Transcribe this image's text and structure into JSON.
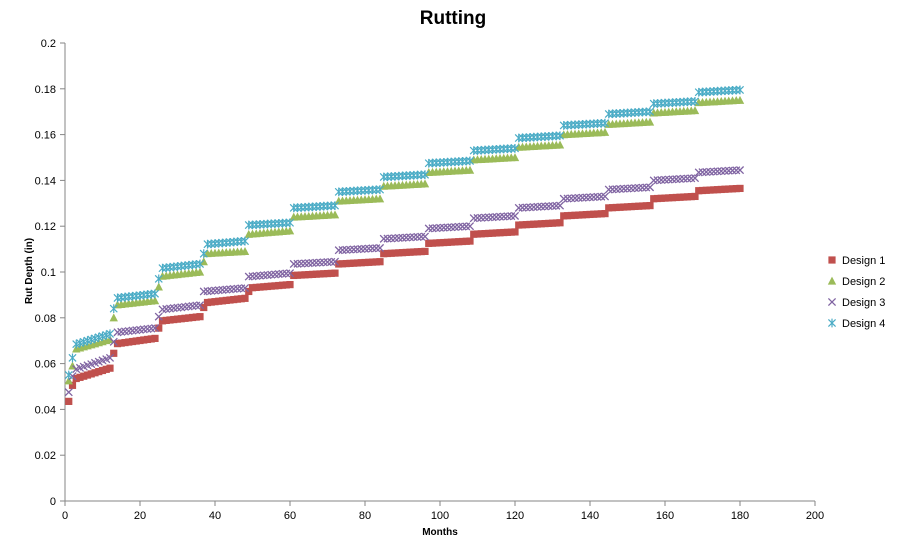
{
  "chart_data": {
    "type": "scatter",
    "title": "Rutting",
    "xlabel": "Months",
    "ylabel": "Rut Depth (in)",
    "xlim": [
      0,
      200
    ],
    "ylim": [
      0,
      0.2
    ],
    "x_ticks": [
      0,
      20,
      40,
      60,
      80,
      100,
      120,
      140,
      160,
      180,
      200
    ],
    "y_ticks": [
      0,
      0.02,
      0.04,
      0.06,
      0.08,
      0.1,
      0.12,
      0.14,
      0.16,
      0.18,
      0.2
    ],
    "x_tick_labels": [
      "0",
      "20",
      "40",
      "60",
      "80",
      "100",
      "120",
      "140",
      "160",
      "180",
      "200"
    ],
    "y_tick_labels": [
      "0",
      "0.02",
      "0.04",
      "0.06",
      "0.08",
      "0.1",
      "0.12",
      "0.14",
      "0.16",
      "0.18",
      "0.2"
    ],
    "grid": false,
    "legend_position": "right",
    "x_start": 1,
    "x_end": 180,
    "series": [
      {
        "name": "Design 1",
        "marker": "square",
        "color": "#c0504d",
        "steps": [
          [
            0,
            12,
            0.0525,
            0.058
          ],
          [
            12,
            24,
            0.0685,
            0.071
          ],
          [
            24,
            36,
            0.0785,
            0.0805
          ],
          [
            36,
            48,
            0.0865,
            0.0885
          ],
          [
            48,
            60,
            0.093,
            0.0945
          ],
          [
            60,
            72,
            0.0985,
            0.0995
          ],
          [
            72,
            84,
            0.1035,
            0.1045
          ],
          [
            84,
            96,
            0.108,
            0.109
          ],
          [
            96,
            108,
            0.1125,
            0.1135
          ],
          [
            108,
            120,
            0.1165,
            0.1175
          ],
          [
            120,
            132,
            0.1205,
            0.1215
          ],
          [
            132,
            144,
            0.1245,
            0.1255
          ],
          [
            144,
            156,
            0.128,
            0.129
          ],
          [
            156,
            168,
            0.132,
            0.133
          ],
          [
            168,
            180,
            0.1355,
            0.1365
          ]
        ],
        "first_points": [
          [
            1,
            0.0435
          ],
          [
            2,
            0.0505
          ]
        ],
        "transitions": [
          [
            13,
            0.0645
          ],
          [
            25,
            0.0755
          ],
          [
            37,
            0.0845
          ],
          [
            49,
            0.0915
          ]
        ]
      },
      {
        "name": "Design 2",
        "marker": "triangle",
        "color": "#9bbb59",
        "steps": [
          [
            0,
            12,
            0.0655,
            0.0705
          ],
          [
            12,
            24,
            0.0855,
            0.0875
          ],
          [
            24,
            36,
            0.098,
            0.1
          ],
          [
            36,
            48,
            0.108,
            0.109
          ],
          [
            48,
            60,
            0.1165,
            0.118
          ],
          [
            60,
            72,
            0.124,
            0.125
          ],
          [
            72,
            84,
            0.131,
            0.132
          ],
          [
            84,
            96,
            0.1375,
            0.1385
          ],
          [
            96,
            108,
            0.1435,
            0.1445
          ],
          [
            108,
            120,
            0.149,
            0.15
          ],
          [
            120,
            132,
            0.1545,
            0.1555
          ],
          [
            132,
            144,
            0.16,
            0.161
          ],
          [
            144,
            156,
            0.1645,
            0.1655
          ],
          [
            156,
            168,
            0.1695,
            0.1705
          ],
          [
            168,
            180,
            0.174,
            0.175
          ]
        ],
        "first_points": [
          [
            1,
            0.0525
          ],
          [
            2,
            0.059
          ]
        ],
        "transitions": [
          [
            13,
            0.08
          ],
          [
            25,
            0.0935
          ],
          [
            37,
            0.1045
          ]
        ]
      },
      {
        "name": "Design 3",
        "marker": "x",
        "color": "#8064a2",
        "steps": [
          [
            0,
            12,
            0.0565,
            0.0625
          ],
          [
            12,
            24,
            0.0735,
            0.0755
          ],
          [
            24,
            36,
            0.0835,
            0.0855
          ],
          [
            36,
            48,
            0.0915,
            0.093
          ],
          [
            48,
            60,
            0.098,
            0.0995
          ],
          [
            60,
            72,
            0.1035,
            0.1045
          ],
          [
            72,
            84,
            0.1095,
            0.1105
          ],
          [
            84,
            96,
            0.1145,
            0.1155
          ],
          [
            96,
            108,
            0.119,
            0.12
          ],
          [
            108,
            120,
            0.1235,
            0.1245
          ],
          [
            120,
            132,
            0.128,
            0.129
          ],
          [
            132,
            144,
            0.132,
            0.133
          ],
          [
            144,
            156,
            0.136,
            0.137
          ],
          [
            156,
            168,
            0.14,
            0.141
          ],
          [
            168,
            180,
            0.1435,
            0.1445
          ]
        ],
        "first_points": [
          [
            1,
            0.0475
          ],
          [
            2,
            0.0545
          ]
        ],
        "transitions": [
          [
            13,
            0.0695
          ],
          [
            25,
            0.0805
          ]
        ]
      },
      {
        "name": "Design 4",
        "marker": "asterisk",
        "color": "#4bacc6",
        "steps": [
          [
            0,
            12,
            0.0675,
            0.073
          ],
          [
            12,
            24,
            0.0885,
            0.0905
          ],
          [
            24,
            36,
            0.1015,
            0.1035
          ],
          [
            36,
            48,
            0.112,
            0.1135
          ],
          [
            48,
            60,
            0.1205,
            0.1215
          ],
          [
            60,
            72,
            0.128,
            0.129
          ],
          [
            72,
            84,
            0.135,
            0.136
          ],
          [
            84,
            96,
            0.1415,
            0.1425
          ],
          [
            96,
            108,
            0.1475,
            0.1485
          ],
          [
            108,
            120,
            0.153,
            0.154
          ],
          [
            120,
            132,
            0.1585,
            0.1595
          ],
          [
            132,
            144,
            0.164,
            0.165
          ],
          [
            144,
            156,
            0.169,
            0.17
          ],
          [
            156,
            168,
            0.1735,
            0.1745
          ],
          [
            168,
            180,
            0.1785,
            0.1795
          ]
        ],
        "first_points": [
          [
            1,
            0.055
          ],
          [
            2,
            0.0625
          ]
        ],
        "transitions": [
          [
            13,
            0.084
          ],
          [
            25,
            0.097
          ],
          [
            37,
            0.108
          ]
        ]
      }
    ]
  }
}
